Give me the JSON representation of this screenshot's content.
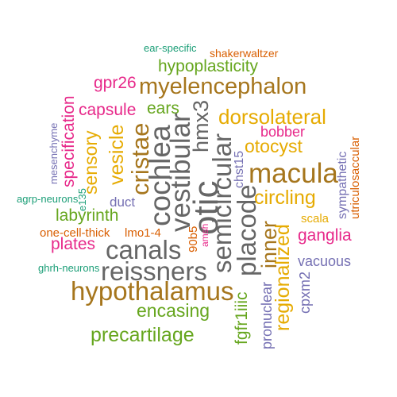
{
  "palette": {
    "teal": "#1b9e77",
    "orange": "#d95f02",
    "purple": "#7570b3",
    "magenta": "#e7298a",
    "green": "#66a61e",
    "gold": "#e6ab02",
    "brown": "#a6761d",
    "gray": "#666666"
  },
  "words": [
    {
      "text": "ear-specific",
      "color": "teal"
    },
    {
      "text": "shakerwaltzer",
      "color": "orange"
    },
    {
      "text": "hypoplasticity",
      "color": "green"
    },
    {
      "text": "gpr26",
      "color": "magenta"
    },
    {
      "text": "myelencephalon",
      "color": "brown"
    },
    {
      "text": "capsule",
      "color": "magenta"
    },
    {
      "text": "ears",
      "color": "green"
    },
    {
      "text": "dorsolateral",
      "color": "gold"
    },
    {
      "text": "bobber",
      "color": "magenta"
    },
    {
      "text": "otocyst",
      "color": "gold"
    },
    {
      "text": "macula",
      "color": "brown"
    },
    {
      "text": "circling",
      "color": "gold"
    },
    {
      "text": "scala",
      "color": "gold"
    },
    {
      "text": "ganglia",
      "color": "magenta"
    },
    {
      "text": "vacuous",
      "color": "purple"
    },
    {
      "text": "labyrinth",
      "color": "green"
    },
    {
      "text": "agrp-neurons",
      "color": "teal"
    },
    {
      "text": "one-cell-thick",
      "color": "orange"
    },
    {
      "text": "lmo1-4",
      "color": "orange"
    },
    {
      "text": "plates",
      "color": "magenta"
    },
    {
      "text": "canals",
      "color": "gray"
    },
    {
      "text": "reissners",
      "color": "gray"
    },
    {
      "text": "ghrh-neurons",
      "color": "teal"
    },
    {
      "text": "hypothalamus",
      "color": "brown"
    },
    {
      "text": "encasing",
      "color": "green"
    },
    {
      "text": "precartilage",
      "color": "green"
    },
    {
      "text": "duct",
      "color": "purple"
    },
    {
      "text": "mesenchyme",
      "color": "purple"
    },
    {
      "text": "specification",
      "color": "magenta"
    },
    {
      "text": "sensory",
      "color": "gold"
    },
    {
      "text": "e135",
      "color": "teal"
    },
    {
      "text": "vesicle",
      "color": "gold"
    },
    {
      "text": "cristae",
      "color": "brown"
    },
    {
      "text": "cochlea",
      "color": "gray"
    },
    {
      "text": "vestibular",
      "color": "gray"
    },
    {
      "text": "otic",
      "color": "gray"
    },
    {
      "text": "hmx3",
      "color": "gray"
    },
    {
      "text": "semicircular",
      "color": "gray"
    },
    {
      "text": "placode",
      "color": "gray"
    },
    {
      "text": "chst15",
      "color": "purple"
    },
    {
      "text": "inner",
      "color": "brown"
    },
    {
      "text": "regionalized",
      "color": "gold"
    },
    {
      "text": "90b5",
      "color": "orange"
    },
    {
      "text": "amsh",
      "color": "magenta"
    },
    {
      "text": "fgfr1iiic",
      "color": "green"
    },
    {
      "text": "pronuclear",
      "color": "purple"
    },
    {
      "text": "cpxm2",
      "color": "purple"
    },
    {
      "text": "sympathetic",
      "color": "purple"
    },
    {
      "text": "utriculosaccular",
      "color": "orange"
    }
  ]
}
